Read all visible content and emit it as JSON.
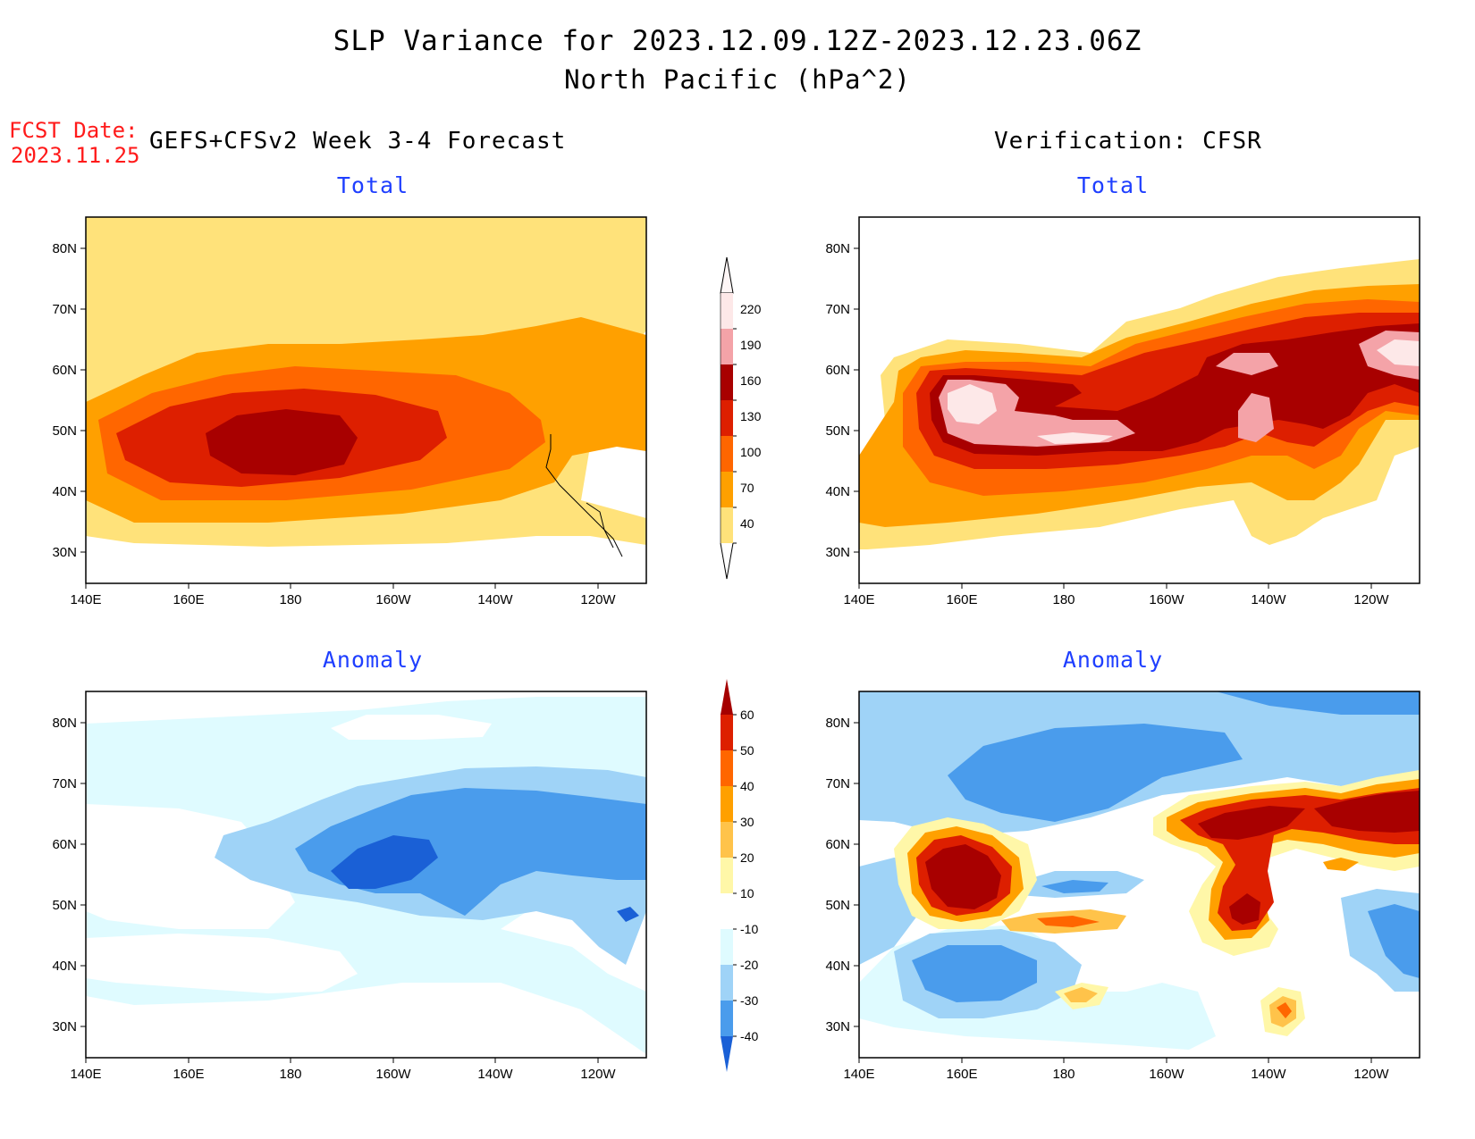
{
  "title": {
    "line1": "SLP Variance for 2023.12.09.12Z-2023.12.23.06Z",
    "line2": "North Pacific (hPa^2)"
  },
  "forecast_date": {
    "label": "FCST Date:",
    "value": "2023.11.25"
  },
  "columns": {
    "left": "GEFS+CFSv2 Week 3-4 Forecast",
    "right": "Verification: CFSR"
  },
  "panels": {
    "forecast_total": "Total",
    "verification_total": "Total",
    "forecast_anomaly": "Anomaly",
    "verification_anomaly": "Anomaly"
  },
  "axes": {
    "lat_labels": [
      "80N",
      "70N",
      "60N",
      "50N",
      "40N",
      "30N"
    ],
    "lon_labels": [
      "140E",
      "160E",
      "180",
      "160W",
      "140W",
      "120W"
    ]
  },
  "colorbars": {
    "total": {
      "levels": [
        "220",
        "190",
        "160",
        "130",
        "100",
        "70",
        "40"
      ],
      "colors": [
        "#fde8e8",
        "#f4a3a8",
        "#a80000",
        "#dd1f00",
        "#ff6600",
        "#ffa000",
        "#ffe27a"
      ]
    },
    "anomaly": {
      "levels": [
        "60",
        "50",
        "40",
        "30",
        "20",
        "10",
        "-10",
        "-20",
        "-30",
        "-40"
      ],
      "colors": [
        "#a50000",
        "#dd1f00",
        "#ff6600",
        "#ffa000",
        "#ffc34a",
        "#fff7a8",
        "#ffffff",
        "#dffbff",
        "#9fd3f7",
        "#4a9cec",
        "#1a60d6"
      ]
    }
  }
}
